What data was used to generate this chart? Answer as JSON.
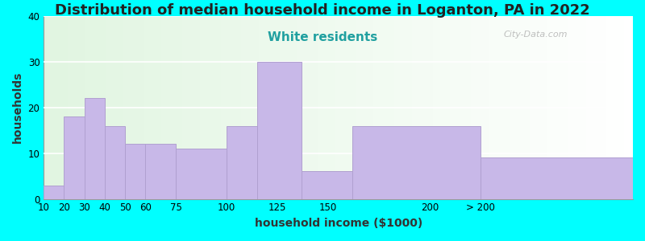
{
  "title": "Distribution of median household income in Loganton, PA in 2022",
  "subtitle": "White residents",
  "xlabel": "household income ($1000)",
  "ylabel": "households",
  "background_color": "#00FFFF",
  "bar_color": "#c8b8e8",
  "bar_edge_color": "#b0a0d0",
  "values": [
    3,
    18,
    22,
    16,
    12,
    12,
    11,
    16,
    30,
    6,
    16,
    9
  ],
  "left_edges": [
    10,
    20,
    30,
    40,
    50,
    60,
    75,
    100,
    115,
    137,
    162,
    225
  ],
  "widths": [
    10,
    10,
    10,
    10,
    10,
    15,
    25,
    15,
    22,
    25,
    63,
    75
  ],
  "tick_positions": [
    10,
    20,
    30,
    40,
    50,
    60,
    75,
    100,
    125,
    150,
    200,
    225
  ],
  "tick_labels": [
    "10",
    "20",
    "30",
    "40",
    "50",
    "60",
    "75",
    "100",
    "125",
    "150",
    "200",
    "> 200"
  ],
  "ylim": [
    0,
    40
  ],
  "yticks": [
    0,
    10,
    20,
    30,
    40
  ],
  "title_fontsize": 13,
  "subtitle_fontsize": 11,
  "subtitle_color": "#20a0a0",
  "axis_label_fontsize": 10,
  "tick_fontsize": 8.5,
  "watermark": "City-Data.com"
}
